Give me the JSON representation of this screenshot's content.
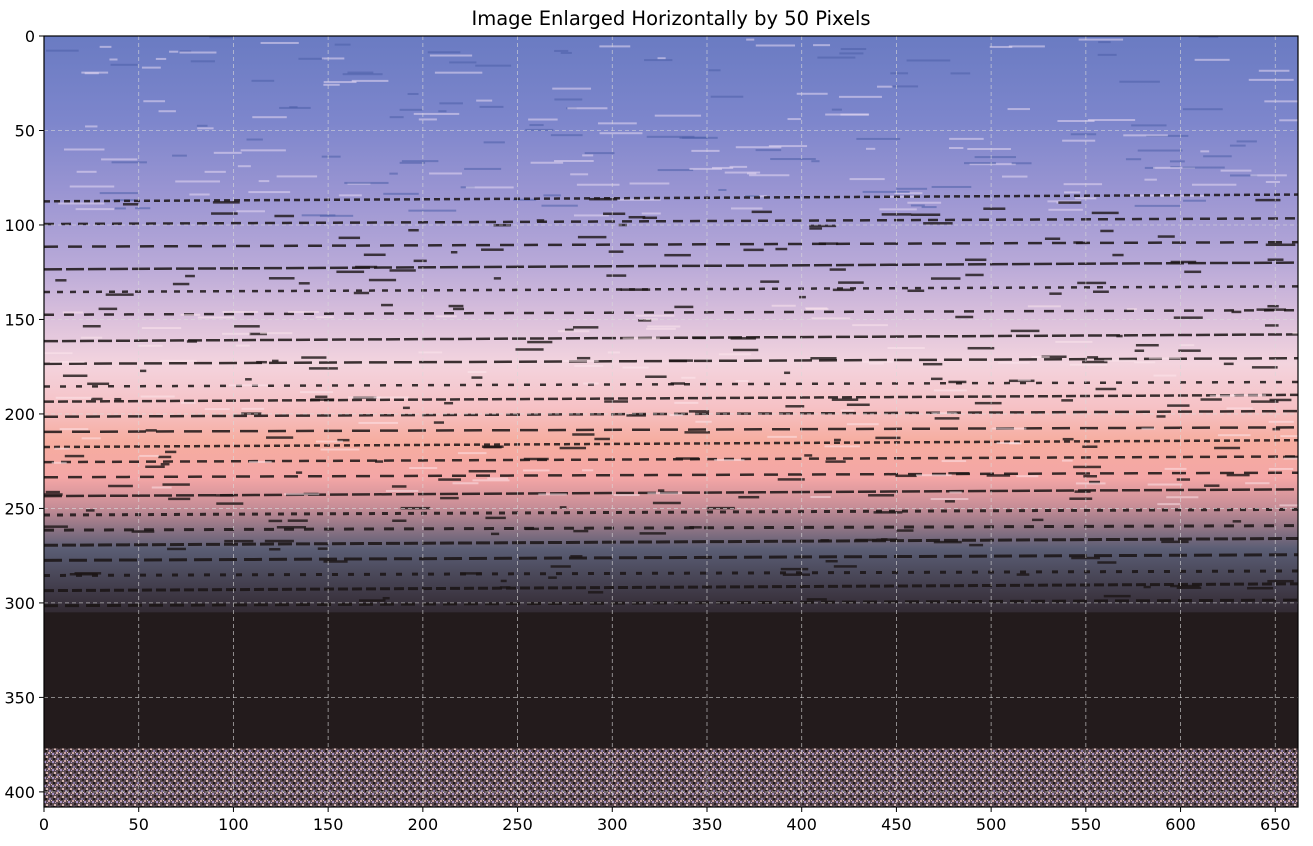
{
  "title": "Image Enlarged Horizontally by 50 Pixels",
  "axes": {
    "x": {
      "range": [
        0,
        662
      ],
      "ticks": [
        0,
        50,
        100,
        150,
        200,
        250,
        300,
        350,
        400,
        450,
        500,
        550,
        600,
        650
      ],
      "tick_labels": [
        "0",
        "50",
        "100",
        "150",
        "200",
        "250",
        "300",
        "350",
        "400",
        "450",
        "500",
        "550",
        "600",
        "650"
      ]
    },
    "y": {
      "range": [
        0,
        408
      ],
      "inverted": true,
      "ticks": [
        0,
        50,
        100,
        150,
        200,
        250,
        300,
        350,
        400
      ],
      "tick_labels": [
        "0",
        "50",
        "100",
        "150",
        "200",
        "250",
        "300",
        "350",
        "400"
      ]
    },
    "grid": true
  },
  "image": {
    "description_colors": {
      "sky_top": "#6f7fc4",
      "sky_mid": "#b7a7d6",
      "sky_pink": "#f0c7d3",
      "sky_peach": "#f7a9a3",
      "horizon_dusk": "#55596e",
      "water_dark": "#231b1c",
      "noise_light": "#c9a3a6",
      "noise_violet": "#a691c4"
    }
  }
}
